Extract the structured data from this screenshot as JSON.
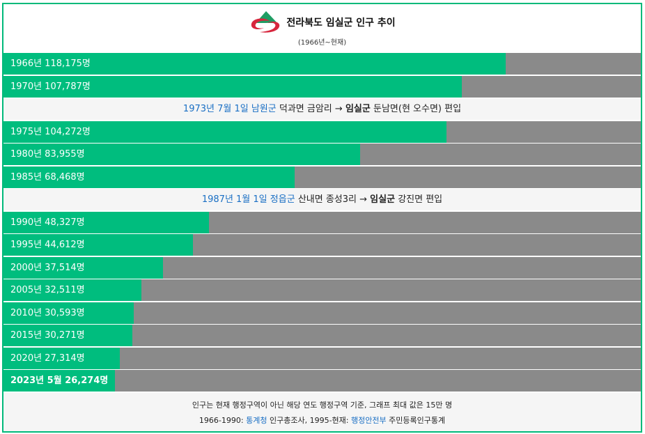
{
  "header": {
    "title": "전라북도 임실군 인구 추이",
    "subtitle": "(1966년~현재)",
    "logo": "imsil-county-logo"
  },
  "chart_data": {
    "type": "bar",
    "orientation": "horizontal",
    "max_value": 150000,
    "rows": [
      {
        "year": 1966,
        "value": 118175,
        "label": "1966년 118,175명"
      },
      {
        "year": 1970,
        "value": 107787,
        "label": "1970년 107,787명"
      },
      {
        "year": 1975,
        "value": 104272,
        "label": "1975년 104,272명"
      },
      {
        "year": 1980,
        "value": 83955,
        "label": "1980년 83,955명"
      },
      {
        "year": 1985,
        "value": 68468,
        "label": "1985년 68,468명"
      },
      {
        "year": 1990,
        "value": 48327,
        "label": "1990년 48,327명"
      },
      {
        "year": 1995,
        "value": 44612,
        "label": "1995년 44,612명"
      },
      {
        "year": 2000,
        "value": 37514,
        "label": "2000년 37,514명"
      },
      {
        "year": 2005,
        "value": 32511,
        "label": "2005년 32,511명"
      },
      {
        "year": 2010,
        "value": 30593,
        "label": "2010년 30,593명"
      },
      {
        "year": 2015,
        "value": 30271,
        "label": "2015년 30,271명"
      },
      {
        "year": 2020,
        "value": 27314,
        "label": "2020년 27,314명"
      },
      {
        "year": 2023,
        "value": 26274,
        "label": "2023년 5월 26,274명"
      }
    ],
    "colors": {
      "bar": "#00bd7e",
      "track": "#8a8a8a",
      "frame": "#00b97a",
      "link": "#1a6fc4"
    }
  },
  "notes": [
    {
      "date": "1973년 7월 1일",
      "from_region": "남원군",
      "from_detail": "덕과면 금암리",
      "arrow": "→",
      "to_region": "임실군",
      "to_detail": "둔남면(현 오수면) 편입"
    },
    {
      "date": "1987년 1월 1일",
      "from_region": "정읍군",
      "from_detail": "산내면 종성3리",
      "arrow": "→",
      "to_region": "임실군",
      "to_detail": "강진면 편입"
    }
  ],
  "footer": {
    "line1": "인구는 현재 행정구역이 아닌 해당 연도 행정구역 기준, 그래프 최대 값은 15만 명",
    "line2_prefix": "1966-1990:",
    "source1_link": "통계청",
    "source1_text": "인구총조사,",
    "line2_mid": "1995-현재:",
    "source2_link": "행정안전부",
    "source2_text": "주민등록인구통계"
  }
}
